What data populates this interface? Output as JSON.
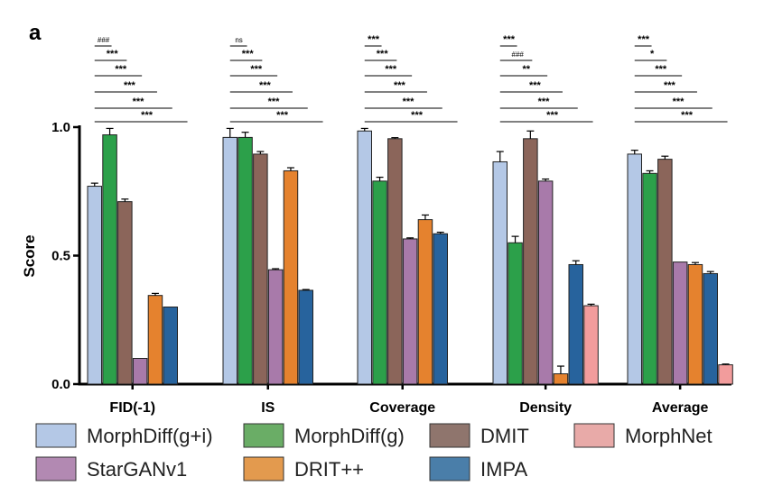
{
  "panel_label": "a",
  "chart_data": {
    "type": "bar",
    "title": "",
    "xlabel": "",
    "ylabel": "Score",
    "ylim": [
      0,
      1.0
    ],
    "yticks": [
      "0.0",
      "0.5",
      "1.0"
    ],
    "ytick_values": [
      0,
      0.5,
      1.0
    ],
    "grid": false,
    "legend_position": "bottom",
    "categories": [
      "FID(-1)",
      "IS",
      "Coverage",
      "Density",
      "Average"
    ],
    "series": [
      {
        "name": "MorphDiff(g+i)",
        "color": "#b4c8e6",
        "values": [
          0.77,
          0.96,
          0.985,
          0.865,
          0.895
        ],
        "errors": [
          0.012,
          0.035,
          0.01,
          0.04,
          0.015
        ]
      },
      {
        "name": "MorphDiff(g)",
        "color": "#2ca04a",
        "values": [
          0.97,
          0.96,
          0.79,
          0.55,
          0.82
        ],
        "errors": [
          0.025,
          0.02,
          0.015,
          0.025,
          0.01
        ]
      },
      {
        "name": "DMIT",
        "color": "#8b655a",
        "values": [
          0.71,
          0.895,
          0.955,
          0.955,
          0.875
        ],
        "errors": [
          0.01,
          0.01,
          0.004,
          0.03,
          0.012
        ]
      },
      {
        "name": "StarGANv1",
        "color": "#a87aaa",
        "values": [
          0.1,
          0.445,
          0.565,
          0.79,
          0.475
        ],
        "errors": [
          0.0,
          0.004,
          0.004,
          0.008,
          0.0
        ]
      },
      {
        "name": "DRIT++",
        "color": "#e5822e",
        "values": [
          0.345,
          0.83,
          0.64,
          0.04,
          0.465
        ],
        "errors": [
          0.008,
          0.012,
          0.018,
          0.03,
          0.008
        ]
      },
      {
        "name": "IMPA",
        "color": "#27639d",
        "values": [
          0.3,
          0.365,
          0.585,
          0.465,
          0.43
        ],
        "errors": [
          0.0,
          0.003,
          0.006,
          0.015,
          0.008
        ]
      },
      {
        "name": "MorphNet",
        "color": "#f29c9c",
        "values": [
          null,
          null,
          null,
          0.305,
          0.075
        ],
        "errors": [
          0,
          0,
          0,
          0.006,
          0.003
        ]
      }
    ],
    "legend": [
      {
        "name": "MorphDiff(g+i)",
        "color": "#b4c8e6"
      },
      {
        "name": "MorphDiff(g)",
        "color": "#6aad66"
      },
      {
        "name": "DMIT",
        "color": "#8f756d"
      },
      {
        "name": "MorphNet",
        "color": "#e8aaa8"
      },
      {
        "name": "StarGANv1",
        "color": "#b289b2"
      },
      {
        "name": "DRIT++",
        "color": "#e39a4e"
      },
      {
        "name": "IMPA",
        "color": "#4a7ea9"
      }
    ],
    "significance": [
      [
        "###",
        "***",
        "***",
        "***",
        "***",
        "***"
      ],
      [
        "ns",
        "***",
        "***",
        "***",
        "***",
        "***"
      ],
      [
        "***",
        "***",
        "***",
        "***",
        "***",
        "***"
      ],
      [
        "***",
        "###",
        "**",
        "***",
        "***",
        "***"
      ],
      [
        "***",
        "*",
        "***",
        "***",
        "***",
        "***"
      ]
    ]
  }
}
